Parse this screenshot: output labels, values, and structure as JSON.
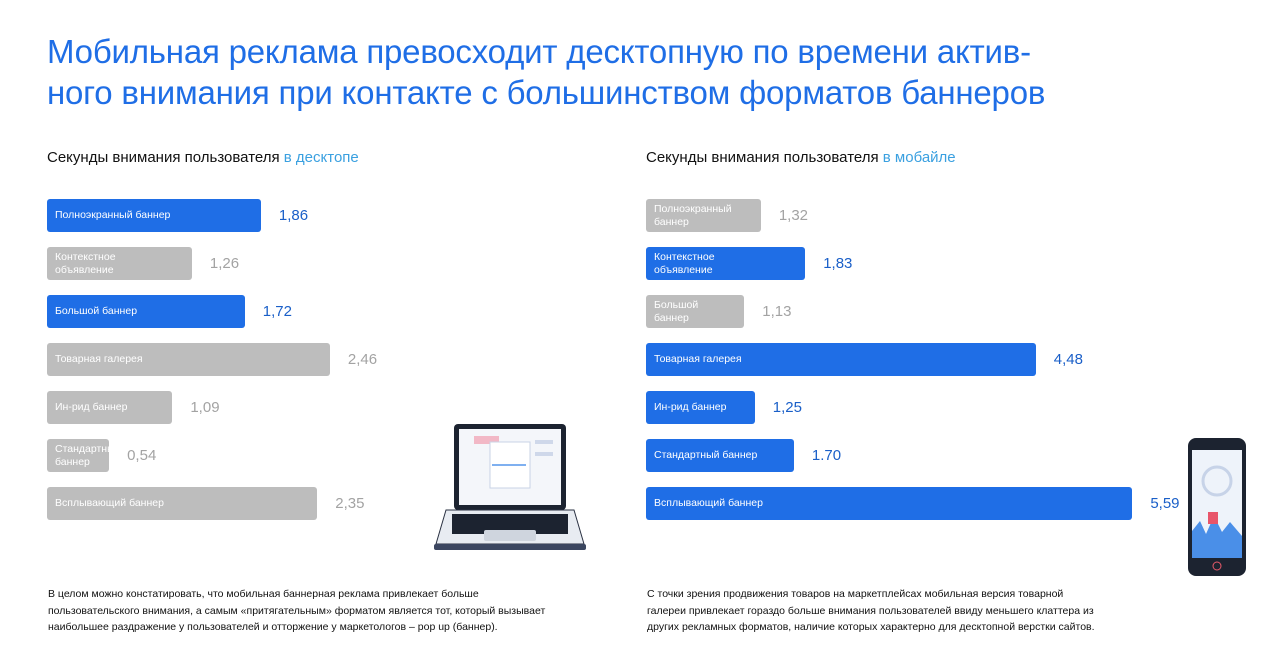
{
  "title": [
    "Мобильная реклама превосходит десктопную по времени актив-",
    "ного внимания при контакте с большинством форматов баннеров"
  ],
  "chart_data": [
    {
      "type": "bar",
      "title": "Секунды внимания пользователя",
      "title_highlight": "в десктопе",
      "categories": [
        "Полноэкранный баннер",
        "Контекстное\nобъявление",
        "Большой баннер",
        "Товарная галерея",
        "Ин-рид баннер",
        "Стандартный\nбаннер",
        "Всплывающий баннер"
      ],
      "values": [
        1.86,
        1.26,
        1.72,
        2.46,
        1.09,
        0.54,
        2.35
      ],
      "value_labels": [
        "1,86",
        "1,26",
        "1,72",
        "2,46",
        "1,09",
        "0,54",
        "2,35"
      ],
      "colors": [
        "#1f6ee6",
        "#bdbdbd",
        "#1f6ee6",
        "#bdbdbd",
        "#bdbdbd",
        "#bdbdbd",
        "#bdbdbd"
      ],
      "note": [
        "В целом можно констатировать, что мобильная баннерная реклама привлекает больше",
        "пользовательского внимания, а самым «притягательным» форматом является тот, который вызывает",
        "наибольшее раздражение у пользователей и отторжение у маркетологов – pop up (баннер)."
      ]
    },
    {
      "type": "bar",
      "title": "Секунды внимания пользователя",
      "title_highlight": "в мобайле",
      "categories": [
        "Полноэкранный\nбаннер",
        "Контекстное\nобъявление",
        "Большой\nбаннер",
        "Товарная галерея",
        "Ин-рид баннер",
        "Стандартный баннер",
        "Всплывающий баннер"
      ],
      "values": [
        1.32,
        1.83,
        1.13,
        4.48,
        1.25,
        1.7,
        5.59
      ],
      "value_labels": [
        "1,32",
        "1,83",
        "1,13",
        "4,48",
        "1,25",
        "1.70",
        "5,59"
      ],
      "colors": [
        "#bdbdbd",
        "#1f6ee6",
        "#bdbdbd",
        "#1f6ee6",
        "#1f6ee6",
        "#1f6ee6",
        "#1f6ee6"
      ],
      "note": [
        "С точки зрения продвижения товаров на маркетплейсах мобильная версия товарной",
        "галереи привлекает гораздо больше внимания пользователей ввиду меньшего клаттера из",
        "других рекламных форматов, наличие которых характерно для десктопной верстки сайтов."
      ]
    }
  ]
}
